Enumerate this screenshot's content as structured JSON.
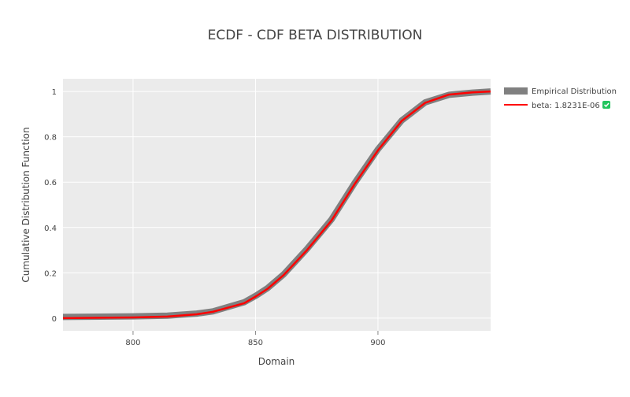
{
  "chart_data": {
    "type": "line",
    "title": "ECDF - CDF BETA DISTRIBUTION",
    "xlabel": "Domain",
    "ylabel": "Cumulative Distribution Function",
    "xlim": [
      771.4,
      946
    ],
    "ylim": [
      -0.056,
      1.056
    ],
    "x_ticks": [
      800,
      850,
      900
    ],
    "y_ticks": [
      0,
      0.2,
      0.4,
      0.6,
      0.8,
      1
    ],
    "y_tick_labels": [
      "0",
      "0.2",
      "0.4",
      "0.6",
      "0.8",
      "1"
    ],
    "grid": true,
    "legend_position": "right",
    "background": "#ebebeb",
    "series": [
      {
        "name": "Empirical Distribution",
        "color": "#808080",
        "x": [
          771.4,
          800,
          814,
          826,
          832.6,
          845.4,
          850.3,
          855,
          861.5,
          871,
          881,
          890.4,
          900,
          909.7,
          919.3,
          929,
          938.6,
          946
        ],
        "y": [
          0.005,
          0.008,
          0.011,
          0.02,
          0.03,
          0.07,
          0.1,
          0.133,
          0.193,
          0.305,
          0.435,
          0.595,
          0.745,
          0.872,
          0.952,
          0.985,
          0.995,
          1.0
        ]
      },
      {
        "name": "beta: 1.8231E-06",
        "color": "#ff0000",
        "x": [
          771.4,
          800,
          814,
          826,
          832.6,
          845.4,
          850.3,
          855,
          861.5,
          871,
          881,
          890.4,
          900,
          909.7,
          919.3,
          929,
          938.6,
          946
        ],
        "y": [
          0.0,
          0.003,
          0.007,
          0.017,
          0.028,
          0.066,
          0.097,
          0.13,
          0.19,
          0.3,
          0.43,
          0.59,
          0.74,
          0.87,
          0.95,
          0.986,
          0.996,
          1.0
        ]
      }
    ]
  }
}
